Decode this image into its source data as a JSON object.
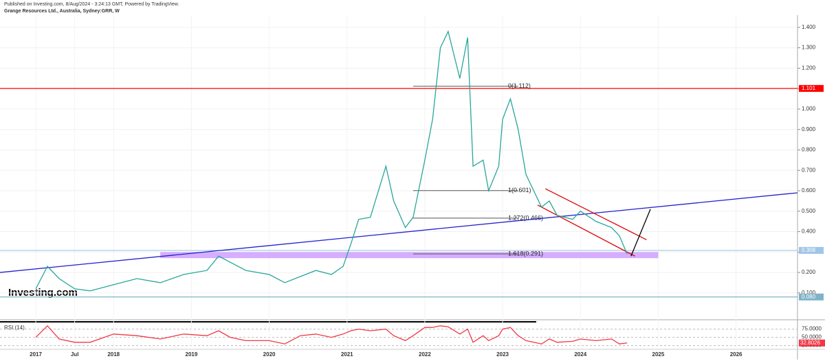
{
  "chart_data": {
    "type": "line",
    "header": "Published on Investing.com, 8/Aug/2024 - 3:24:13 GMT, Powered by TradingView.",
    "title": "Grange Resources Ltd., Australia, Sydney:GRR, W",
    "logo": "Investing.com",
    "x": [
      2017.0,
      2017.15,
      2017.3,
      2017.5,
      2017.7,
      2018.0,
      2018.3,
      2018.6,
      2018.9,
      2019.2,
      2019.35,
      2019.5,
      2019.7,
      2020.0,
      2020.2,
      2020.4,
      2020.6,
      2020.8,
      2020.95,
      2021.05,
      2021.15,
      2021.3,
      2021.5,
      2021.6,
      2021.75,
      2021.85,
      2022.0,
      2022.1,
      2022.2,
      2022.3,
      2022.45,
      2022.55,
      2022.62,
      2022.75,
      2022.82,
      2022.95,
      2023.0,
      2023.1,
      2023.2,
      2023.3,
      2023.4,
      2023.5,
      2023.6,
      2023.7,
      2023.9,
      2024.0,
      2024.2,
      2024.4,
      2024.5,
      2024.6
    ],
    "series": [
      {
        "color": "#26a69a",
        "values": [
          0.12,
          0.23,
          0.17,
          0.12,
          0.11,
          0.14,
          0.17,
          0.15,
          0.19,
          0.21,
          0.28,
          0.25,
          0.21,
          0.19,
          0.15,
          0.18,
          0.21,
          0.19,
          0.23,
          0.34,
          0.46,
          0.47,
          0.72,
          0.55,
          0.42,
          0.47,
          0.75,
          0.95,
          1.3,
          1.38,
          1.15,
          1.35,
          0.72,
          0.75,
          0.6,
          0.72,
          0.95,
          1.05,
          0.9,
          0.68,
          0.6,
          0.52,
          0.55,
          0.48,
          0.46,
          0.5,
          0.45,
          0.42,
          0.38,
          0.29
        ]
      },
      {
        "name": "RSI (14)",
        "axis": "y2",
        "color": "#f23645",
        "values": [
          50,
          85,
          45,
          35,
          35,
          60,
          55,
          45,
          60,
          55,
          70,
          50,
          40,
          40,
          30,
          55,
          60,
          50,
          60,
          70,
          75,
          70,
          75,
          55,
          40,
          55,
          80,
          80,
          85,
          82,
          60,
          75,
          35,
          55,
          40,
          55,
          75,
          80,
          55,
          40,
          35,
          30,
          45,
          35,
          38,
          45,
          40,
          45,
          30,
          33
        ]
      }
    ],
    "xlim": [
      2016.54,
      2026.79
    ],
    "xticks": [
      2017,
      {
        "value": 2017.5,
        "label": "Jul"
      },
      2018,
      2019,
      2020,
      2021,
      2022,
      2023,
      2024,
      2025,
      2026
    ],
    "ylim": [
      0,
      1.46
    ],
    "yticks": [
      {
        "value": 0.1,
        "label": "0.100"
      },
      {
        "value": 0.2,
        "label": "0.200"
      },
      {
        "value": 0.3,
        "label": "0.300"
      },
      {
        "value": 0.4,
        "label": "0.400"
      },
      {
        "value": 0.5,
        "label": "0.500"
      },
      {
        "value": 0.6,
        "label": "0.600"
      },
      {
        "value": 0.7,
        "label": "0.700"
      },
      {
        "value": 0.8,
        "label": "0.800"
      },
      {
        "value": 0.9,
        "label": "0.900"
      },
      {
        "value": 1.0,
        "label": "1.000"
      },
      {
        "value": 1.1,
        "label": "1.100"
      },
      {
        "value": 1.2,
        "label": "1.200"
      },
      {
        "value": 1.3,
        "label": "1.300"
      },
      {
        "value": 1.4,
        "label": "1.400"
      }
    ],
    "y2lim": [
      20,
      95
    ],
    "y2ticks": [
      {
        "value": 25,
        "label": "25.0000"
      },
      {
        "value": 50,
        "label": "50.0000"
      },
      {
        "value": 75,
        "label": "75.0000"
      }
    ],
    "price_markers": [
      {
        "value": 1.101,
        "label": "1.101",
        "color": "#ff0000"
      },
      {
        "value": 0.308,
        "label": "0.308",
        "color": "#9fc5e8"
      },
      {
        "value": 0.08,
        "label": "0.080",
        "color": "#7fb3c8"
      }
    ],
    "rsi_marker": {
      "value": 32.8026,
      "label": "32.8026",
      "color": "#f23645"
    },
    "fib": [
      {
        "value": 1.112,
        "label": "0(1.112)",
        "x": [
          2021.85,
          2023.2
        ]
      },
      {
        "value": 0.601,
        "label": "1(0.601)",
        "x": [
          2021.85,
          2023.2
        ]
      },
      {
        "value": 0.466,
        "label": "1.272(0.466)",
        "x": [
          2021.85,
          2023.2
        ]
      },
      {
        "value": 0.291,
        "label": "1.618(0.291)",
        "x": [
          2021.85,
          2023.2
        ]
      }
    ],
    "trendlines": [
      {
        "x": [
          2016.54,
          2026.79
        ],
        "y": [
          0.2,
          0.59
        ],
        "color": "#2020d0"
      },
      {
        "x": [
          2023.55,
          2024.85
        ],
        "y": [
          0.61,
          0.36
        ],
        "color": "#e00000"
      },
      {
        "x": [
          2023.45,
          2024.7
        ],
        "y": [
          0.53,
          0.28
        ],
        "color": "#e00000"
      },
      {
        "x": [
          2024.65,
          2024.9
        ],
        "y": [
          0.28,
          0.51
        ],
        "color": "#000000"
      }
    ],
    "zones": [
      {
        "x": [
          2018.6,
          2025.0
        ],
        "y": [
          0.27,
          0.3
        ],
        "color": "#cc99ff"
      }
    ]
  }
}
